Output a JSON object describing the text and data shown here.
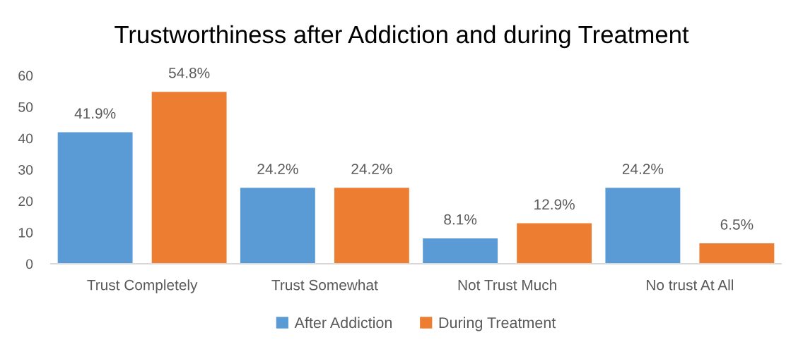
{
  "chart_data": {
    "type": "bar",
    "title": "Trustworthiness after Addiction and during Treatment",
    "categories": [
      "Trust Completely",
      "Trust Somewhat",
      "Not Trust Much",
      "No trust At All"
    ],
    "series": [
      {
        "name": "After Addiction",
        "color": "#5b9bd5",
        "values": [
          41.9,
          24.2,
          8.1,
          24.2
        ],
        "value_labels": [
          "41.9%",
          "24.2%",
          "8.1%",
          "24.2%"
        ]
      },
      {
        "name": "During Treatment",
        "color": "#ed7d31",
        "values": [
          54.8,
          24.2,
          12.9,
          6.5
        ],
        "value_labels": [
          "54.8%",
          "24.2%",
          "12.9%",
          "6.5%"
        ]
      }
    ],
    "ylim": [
      0,
      60
    ],
    "yticks": [
      0,
      10,
      20,
      30,
      40,
      50,
      60
    ],
    "grid": false,
    "legend": "bottom"
  }
}
